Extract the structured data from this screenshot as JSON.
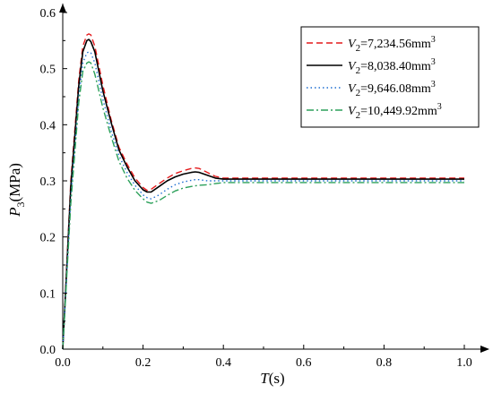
{
  "chart_data": {
    "type": "line",
    "xlabel": {
      "var": "T",
      "unit": "(s)"
    },
    "ylabel": {
      "var": "P",
      "sub": "3",
      "unit": "(MPa)"
    },
    "xlim": [
      0.0,
      1.0
    ],
    "ylim": [
      0.0,
      0.6
    ],
    "xticks": [
      "0.0",
      "0.2",
      "0.4",
      "0.6",
      "0.8",
      "1.0"
    ],
    "yticks": [
      "0.0",
      "0.1",
      "0.2",
      "0.3",
      "0.4",
      "0.5",
      "0.6"
    ],
    "legend_position": "top-right",
    "series": [
      {
        "name": "V2=7,234.56mm3",
        "label_prefix": "=7,234.56mm",
        "color": "#e41a1c",
        "dash": "dashed",
        "x": [
          0,
          0.02,
          0.04,
          0.05,
          0.06,
          0.065,
          0.07,
          0.08,
          0.1,
          0.12,
          0.14,
          0.16,
          0.18,
          0.2,
          0.21,
          0.22,
          0.24,
          0.26,
          0.28,
          0.3,
          0.32,
          0.33,
          0.34,
          0.36,
          0.38,
          0.4,
          0.45,
          0.5,
          0.6,
          0.7,
          0.8,
          0.9,
          1.0
        ],
        "y": [
          0,
          0.3,
          0.48,
          0.54,
          0.56,
          0.562,
          0.56,
          0.54,
          0.47,
          0.41,
          0.36,
          0.33,
          0.305,
          0.288,
          0.283,
          0.285,
          0.295,
          0.305,
          0.313,
          0.318,
          0.322,
          0.323,
          0.322,
          0.315,
          0.308,
          0.305,
          0.305,
          0.305,
          0.305,
          0.305,
          0.305,
          0.305,
          0.305
        ]
      },
      {
        "name": "V2=8,038.40mm3",
        "label_prefix": "=8,038.40mm",
        "color": "#000000",
        "dash": "solid",
        "x": [
          0,
          0.02,
          0.04,
          0.05,
          0.06,
          0.065,
          0.07,
          0.08,
          0.1,
          0.12,
          0.14,
          0.16,
          0.18,
          0.2,
          0.21,
          0.22,
          0.24,
          0.26,
          0.28,
          0.3,
          0.32,
          0.33,
          0.34,
          0.36,
          0.38,
          0.4,
          0.45,
          0.5,
          0.6,
          0.7,
          0.8,
          0.9,
          1.0
        ],
        "y": [
          0,
          0.29,
          0.47,
          0.53,
          0.55,
          0.552,
          0.548,
          0.53,
          0.46,
          0.405,
          0.355,
          0.325,
          0.3,
          0.284,
          0.28,
          0.28,
          0.29,
          0.3,
          0.307,
          0.312,
          0.315,
          0.316,
          0.315,
          0.31,
          0.305,
          0.303,
          0.303,
          0.303,
          0.303,
          0.303,
          0.303,
          0.303,
          0.303
        ]
      },
      {
        "name": "V2=9,646.08mm3",
        "label_prefix": "=9,646.08mm",
        "color": "#1f6fd1",
        "dash": "dotted",
        "x": [
          0,
          0.02,
          0.04,
          0.05,
          0.06,
          0.065,
          0.07,
          0.08,
          0.1,
          0.12,
          0.14,
          0.16,
          0.18,
          0.2,
          0.21,
          0.22,
          0.24,
          0.26,
          0.28,
          0.3,
          0.32,
          0.33,
          0.34,
          0.36,
          0.38,
          0.4,
          0.45,
          0.5,
          0.6,
          0.7,
          0.8,
          0.9,
          1.0
        ],
        "y": [
          0,
          0.27,
          0.45,
          0.51,
          0.528,
          0.53,
          0.528,
          0.51,
          0.445,
          0.39,
          0.345,
          0.315,
          0.292,
          0.275,
          0.27,
          0.268,
          0.275,
          0.285,
          0.293,
          0.298,
          0.301,
          0.302,
          0.302,
          0.3,
          0.3,
          0.3,
          0.3,
          0.3,
          0.3,
          0.3,
          0.3,
          0.3,
          0.3
        ]
      },
      {
        "name": "V2=10,449.92mm3",
        "label_prefix": "=10,449.92mm",
        "color": "#2ca05a",
        "dash": "dashdot",
        "x": [
          0,
          0.02,
          0.04,
          0.05,
          0.06,
          0.065,
          0.07,
          0.08,
          0.1,
          0.12,
          0.14,
          0.16,
          0.18,
          0.2,
          0.21,
          0.22,
          0.24,
          0.26,
          0.28,
          0.3,
          0.32,
          0.33,
          0.34,
          0.36,
          0.38,
          0.4,
          0.45,
          0.5,
          0.6,
          0.7,
          0.8,
          0.9,
          1.0
        ],
        "y": [
          0,
          0.26,
          0.44,
          0.495,
          0.51,
          0.512,
          0.51,
          0.49,
          0.43,
          0.38,
          0.335,
          0.305,
          0.283,
          0.268,
          0.262,
          0.26,
          0.265,
          0.274,
          0.282,
          0.287,
          0.29,
          0.291,
          0.292,
          0.293,
          0.295,
          0.297,
          0.297,
          0.297,
          0.297,
          0.297,
          0.297,
          0.297,
          0.297
        ]
      }
    ],
    "legend_var": "V",
    "legend_sub": "2",
    "legend_sup": "3"
  }
}
